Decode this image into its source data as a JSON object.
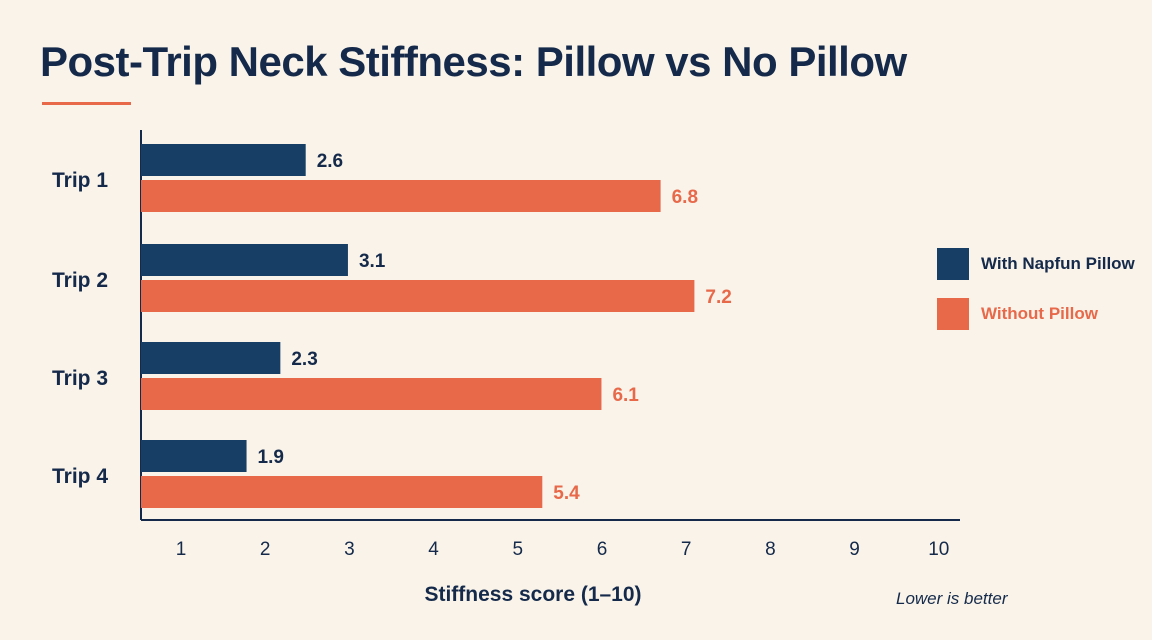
{
  "title": "Post-Trip Neck Stiffness: Pillow vs No Pillow",
  "note": "Lower is better",
  "colors": {
    "with": "#173f66",
    "without": "#e8694a",
    "text": "#152a4a"
  },
  "chart_data": {
    "type": "bar",
    "orientation": "horizontal",
    "categories": [
      "Trip 1",
      "Trip 2",
      "Trip 3",
      "Trip 4"
    ],
    "series": [
      {
        "name": "With Napfun Pillow",
        "values": [
          2.6,
          3.1,
          2.3,
          1.9
        ],
        "color": "#173f66"
      },
      {
        "name": "Without Pillow",
        "values": [
          6.8,
          7.2,
          6.1,
          5.4
        ],
        "color": "#e8694a"
      }
    ],
    "xlabel": "Stiffness score (1–10)",
    "ylabel": "",
    "xticks": [
      1,
      2,
      3,
      4,
      5,
      6,
      7,
      8,
      9,
      10
    ],
    "xlim": [
      1,
      10
    ],
    "grid": false,
    "legend_position": "right"
  }
}
